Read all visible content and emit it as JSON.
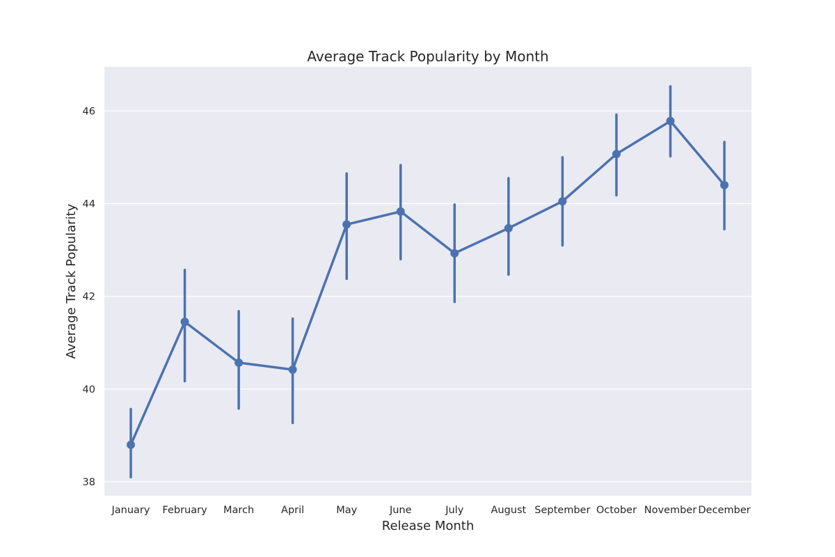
{
  "chart_data": {
    "type": "line",
    "title": "Average Track Popularity by Month",
    "xlabel": "Release Month",
    "ylabel": "Average Track Popularity",
    "categories": [
      "January",
      "February",
      "March",
      "April",
      "May",
      "June",
      "July",
      "August",
      "September",
      "October",
      "November",
      "December"
    ],
    "series": [
      {
        "values": [
          38.8,
          41.45,
          40.57,
          40.42,
          43.55,
          43.83,
          42.93,
          43.47,
          44.05,
          45.07,
          45.78,
          44.4
        ],
        "ci_lower": [
          38.1,
          40.17,
          39.58,
          39.27,
          42.38,
          42.8,
          41.88,
          42.47,
          43.1,
          44.18,
          45.02,
          43.45
        ],
        "ci_upper": [
          39.57,
          42.57,
          41.68,
          41.52,
          44.65,
          44.83,
          43.98,
          44.55,
          45.0,
          45.92,
          46.53,
          45.33
        ],
        "color": "#4c72b0"
      }
    ],
    "yticks": [
      "38",
      "40",
      "42",
      "44",
      "46"
    ],
    "ylim": [
      37.7,
      46.95
    ],
    "grid": true,
    "background": "#eaeaf2"
  }
}
